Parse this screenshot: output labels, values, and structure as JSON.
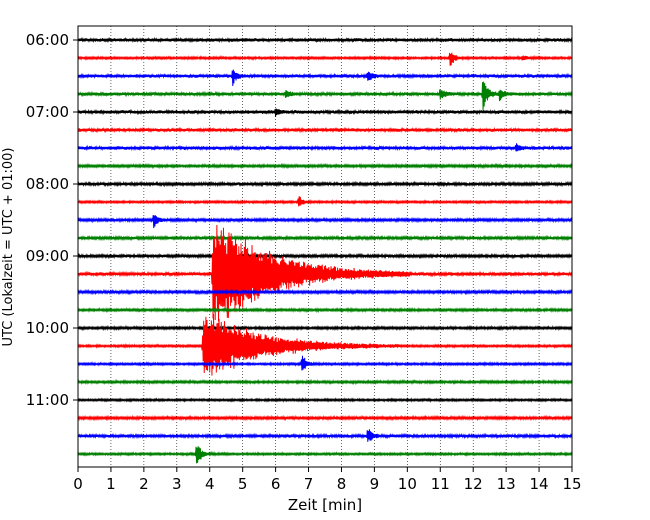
{
  "chart_data": {
    "type": "seismogram",
    "xlabel": "Zeit  [min]",
    "ylabel": "UTC (Lokalzeit = UTC + 01:00)",
    "xlim": [
      0,
      15
    ],
    "x_ticks": [
      "0",
      "1",
      "2",
      "3",
      "4",
      "5",
      "6",
      "7",
      "8",
      "9",
      "10",
      "11",
      "12",
      "13",
      "14",
      "15"
    ],
    "y_ticks": [
      "06:00",
      "07:00",
      "08:00",
      "09:00",
      "10:00",
      "11:00"
    ],
    "minutes_per_trace": 15,
    "start_time": "06:00",
    "trace_count": 24,
    "trace_colors": [
      "#000000",
      "#ff0000",
      "#0000ff",
      "#008000"
    ],
    "grid": "vertical dotted lines at each minute",
    "events": [
      {
        "trace_time": "06:15",
        "minute": 11.3,
        "amplitude": 1.1
      },
      {
        "trace_time": "06:15",
        "minute": 13.5,
        "amplitude": 0.4
      },
      {
        "trace_time": "06:30",
        "minute": 4.7,
        "amplitude": 1.0
      },
      {
        "trace_time": "06:30",
        "minute": 8.8,
        "amplitude": 0.7
      },
      {
        "trace_time": "06:45",
        "minute": 6.3,
        "amplitude": 0.6
      },
      {
        "trace_time": "06:45",
        "minute": 12.3,
        "amplitude": 2.3
      },
      {
        "trace_time": "06:45",
        "minute": 12.8,
        "amplitude": 0.8
      },
      {
        "trace_time": "06:45",
        "minute": 11.0,
        "amplitude": 0.7
      },
      {
        "trace_time": "07:00",
        "minute": 6.0,
        "amplitude": 0.5
      },
      {
        "trace_time": "07:30",
        "minute": 13.3,
        "amplitude": 0.5
      },
      {
        "trace_time": "08:15",
        "minute": 6.7,
        "amplitude": 0.8
      },
      {
        "trace_time": "08:30",
        "minute": 2.3,
        "amplitude": 1.0
      },
      {
        "trace_time": "09:15",
        "minute": 4.1,
        "amplitude": 7.5,
        "type": "earthquake"
      },
      {
        "trace_time": "10:15",
        "minute": 3.8,
        "amplitude": 4.5,
        "type": "earthquake"
      },
      {
        "trace_time": "10:30",
        "minute": 6.8,
        "amplitude": 1.3
      },
      {
        "trace_time": "11:30",
        "minute": 8.8,
        "amplitude": 1.1
      },
      {
        "trace_time": "11:45",
        "minute": 3.6,
        "amplitude": 1.7
      }
    ]
  }
}
